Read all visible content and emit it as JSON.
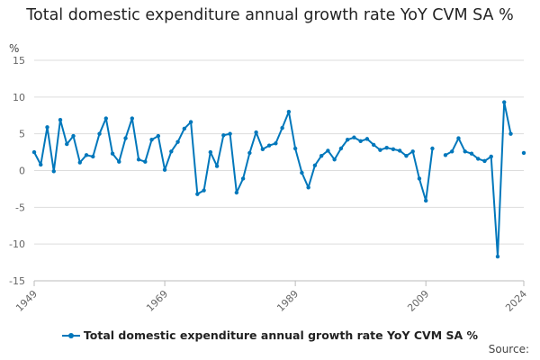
{
  "title": "Total domestic expenditure annual growth rate YoY CVM SA %",
  "source_label": "Source:",
  "colors": {
    "series": "#0077bb",
    "grid": "#dddddd",
    "axis": "#bbbbbb",
    "tick_text": "#666666"
  },
  "chart_data": {
    "type": "line",
    "title": "Total domestic expenditure annual growth rate YoY CVM SA %",
    "ylabel": "%",
    "xlabel": "",
    "xlim": [
      1949,
      2024
    ],
    "ylim": [
      -15,
      15
    ],
    "y_ticks": [
      15,
      10,
      5,
      0,
      -5,
      -10,
      -15
    ],
    "x_ticks": [
      1949,
      1969,
      1989,
      2009,
      2024
    ],
    "grid": true,
    "legend_position": "bottom",
    "series": [
      {
        "name": "Total domestic expenditure annual growth rate YoY CVM SA %",
        "x": [
          1949,
          1950,
          1951,
          1952,
          1953,
          1954,
          1955,
          1956,
          1957,
          1958,
          1959,
          1960,
          1961,
          1962,
          1963,
          1964,
          1965,
          1966,
          1967,
          1968,
          1969,
          1970,
          1971,
          1972,
          1973,
          1974,
          1975,
          1976,
          1977,
          1978,
          1979,
          1980,
          1981,
          1982,
          1983,
          1984,
          1985,
          1986,
          1987,
          1988,
          1989,
          1990,
          1991,
          1992,
          1993,
          1994,
          1995,
          1996,
          1997,
          1998,
          1999,
          2000,
          2001,
          2002,
          2003,
          2004,
          2005,
          2006,
          2007,
          2008,
          2009,
          2010,
          2011,
          2012,
          2013,
          2014,
          2015,
          2016,
          2017,
          2018,
          2019,
          2020,
          2021,
          2022,
          2023,
          2024
        ],
        "values": [
          2.5,
          0.8,
          5.9,
          -0.1,
          6.9,
          3.6,
          4.7,
          1.1,
          2.1,
          1.9,
          5.0,
          7.1,
          2.3,
          1.2,
          4.4,
          7.1,
          1.5,
          1.2,
          4.2,
          4.7,
          0.1,
          2.6,
          3.9,
          5.7,
          6.6,
          -3.2,
          -2.7,
          2.5,
          0.6,
          4.8,
          5.0,
          -3.0,
          -1.1,
          2.4,
          5.2,
          2.9,
          3.4,
          3.7,
          5.8,
          8.0,
          3.0,
          -0.3,
          -2.3,
          0.7,
          2.0,
          2.7,
          1.5,
          3.0,
          4.2,
          4.5,
          4.0,
          4.3,
          3.5,
          2.8,
          3.1,
          2.9,
          2.7,
          2.0,
          2.6,
          -1.1,
          -4.1,
          3.0,
          null,
          2.1,
          2.6,
          4.4,
          2.6,
          2.3,
          1.6,
          1.3,
          1.9,
          -11.7,
          9.3,
          5.0,
          null,
          2.4
        ]
      }
    ]
  }
}
